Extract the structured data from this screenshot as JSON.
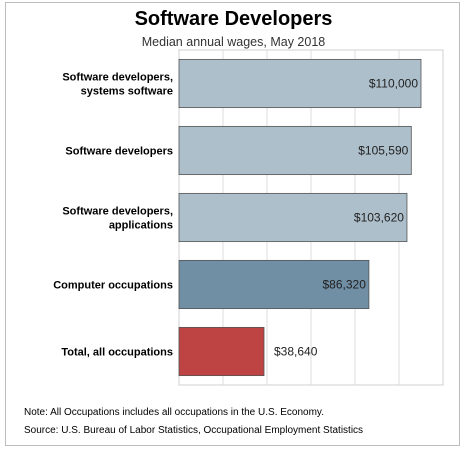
{
  "header": {
    "title": "Software Developers",
    "subtitle": "Median annual wages, May 2018"
  },
  "footer": {
    "note": "Note: All Occupations includes all occupations in the U.S. Economy.",
    "source": "Source: U.S. Bureau of Labor Statistics, Occupational Employment Statistics"
  },
  "chart_data": {
    "type": "bar",
    "orientation": "horizontal",
    "title": "Software Developers",
    "subtitle": "Median annual wages, May 2018",
    "categories": [
      [
        "Software developers,",
        "systems software"
      ],
      [
        "Software developers"
      ],
      [
        "Software developers,",
        "applications"
      ],
      [
        "Computer occupations"
      ],
      [
        "Total, all occupations"
      ]
    ],
    "values": [
      110000,
      105590,
      103620,
      86320,
      38640
    ],
    "value_labels": [
      "$110,000",
      "$105,590",
      "$103,620",
      "$86,320",
      "$38,640"
    ],
    "colors": [
      "#adbfcb",
      "#adbfcb",
      "#adbfcb",
      "#708ea4",
      "#bd4443"
    ],
    "xlim": [
      0,
      120000
    ],
    "grid": true,
    "xlabel": "",
    "ylabel": ""
  }
}
